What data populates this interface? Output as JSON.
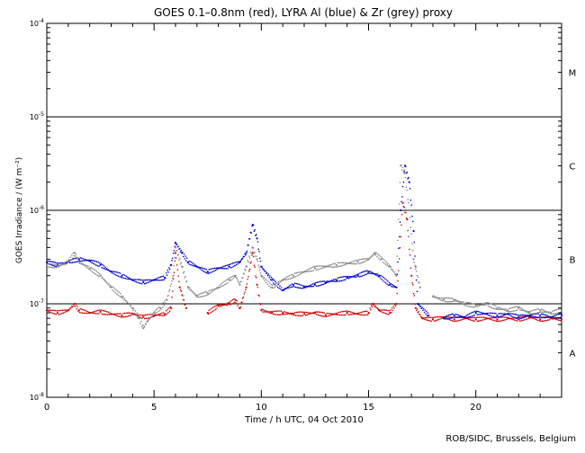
{
  "chart_data": {
    "type": "scatter",
    "title": "GOES 0.1–0.8nm (red), LYRA Al (blue) & Zr (grey) proxy",
    "xlabel": "Time / h UTC, 04 Oct 2010",
    "ylabel": "GOES Irradiance / (W m⁻²)",
    "x_ticks": [
      "0",
      "5",
      "10",
      "15",
      "20"
    ],
    "y_ticks": [
      {
        "base": "10",
        "exp": "-8",
        "value": 1e-08
      },
      {
        "base": "10",
        "exp": "-7",
        "value": 1e-07
      },
      {
        "base": "10",
        "exp": "-6",
        "value": 1e-06
      },
      {
        "base": "10",
        "exp": "-5",
        "value": 1e-05
      },
      {
        "base": "10",
        "exp": "-4",
        "value": 0.0001
      }
    ],
    "xlim": [
      0,
      24
    ],
    "ylim": [
      1e-08,
      0.0001
    ],
    "y_scale": "log",
    "class_lines": [
      1e-07,
      1e-06,
      1e-05
    ],
    "class_labels": [
      {
        "label": "A",
        "value": 3e-08
      },
      {
        "label": "B",
        "value": 3e-07
      },
      {
        "label": "C",
        "value": 3e-06
      },
      {
        "label": "M",
        "value": 3e-05
      }
    ],
    "series": [
      {
        "color": "#d00000",
        "points": [
          [
            0,
            8.5e-08
          ],
          [
            0.5,
            8e-08
          ],
          [
            1,
            8.5e-08
          ],
          [
            1.3,
            1e-07
          ],
          [
            1.5,
            8.5e-08
          ],
          [
            2,
            8e-08
          ],
          [
            2.5,
            8.2e-08
          ],
          [
            3,
            7.8e-08
          ],
          [
            3.5,
            7.5e-08
          ],
          [
            4,
            7.8e-08
          ],
          [
            4.5,
            7.2e-08
          ],
          [
            5,
            7.5e-08
          ],
          [
            5.5,
            7.8e-08
          ],
          [
            5.8,
            9e-08
          ],
          [
            6.0,
            3.5e-07
          ],
          [
            6.2,
            1.5e-07
          ],
          [
            6.5,
            9e-08
          ],
          [
            7.5,
            8e-08
          ],
          [
            8,
            9.5e-08
          ],
          [
            8.5,
            1e-07
          ],
          [
            8.8,
            1.1e-07
          ],
          [
            9,
            9e-08
          ],
          [
            9.3,
            1.5e-07
          ],
          [
            9.6,
            3.5e-07
          ],
          [
            9.8,
            1.6e-07
          ],
          [
            10,
            8.5e-08
          ],
          [
            10.5,
            8e-08
          ],
          [
            11,
            8e-08
          ],
          [
            11.5,
            7.8e-08
          ],
          [
            12,
            7.8e-08
          ],
          [
            12.5,
            8e-08
          ],
          [
            13,
            7.6e-08
          ],
          [
            13.5,
            7.8e-08
          ],
          [
            14,
            8e-08
          ],
          [
            14.5,
            7.8e-08
          ],
          [
            15,
            8e-08
          ],
          [
            15.2,
            1e-07
          ],
          [
            15.5,
            8.5e-08
          ],
          [
            16,
            8e-08
          ],
          [
            16.3,
            1e-07
          ],
          [
            16.6,
            1.2e-06
          ],
          [
            16.8,
            8e-07
          ],
          [
            17,
            2e-07
          ],
          [
            17.2,
            9e-08
          ],
          [
            17.5,
            7e-08
          ],
          [
            18,
            6.8e-08
          ],
          [
            18.5,
            7.2e-08
          ],
          [
            19,
            6.8e-08
          ],
          [
            19.5,
            7e-08
          ],
          [
            20,
            6.8e-08
          ],
          [
            20.5,
            7e-08
          ],
          [
            21,
            6.8e-08
          ],
          [
            21.5,
            7e-08
          ],
          [
            22,
            6.8e-08
          ],
          [
            22.5,
            7.2e-08
          ],
          [
            23,
            6.8e-08
          ],
          [
            23.5,
            7e-08
          ],
          [
            24,
            6.8e-08
          ]
        ]
      },
      {
        "color": "#0000cc",
        "points": [
          [
            0,
            2.8e-07
          ],
          [
            0.5,
            2.6e-07
          ],
          [
            1,
            2.8e-07
          ],
          [
            1.5,
            3e-07
          ],
          [
            2,
            2.9e-07
          ],
          [
            2.5,
            2.6e-07
          ],
          [
            3,
            2.2e-07
          ],
          [
            3.5,
            2e-07
          ],
          [
            4,
            1.8e-07
          ],
          [
            4.5,
            1.7e-07
          ],
          [
            5,
            1.8e-07
          ],
          [
            5.5,
            1.9e-07
          ],
          [
            5.8,
            2.6e-07
          ],
          [
            6.0,
            4.5e-07
          ],
          [
            6.3,
            3.5e-07
          ],
          [
            6.6,
            2.8e-07
          ],
          [
            7,
            2.5e-07
          ],
          [
            7.5,
            2.2e-07
          ],
          [
            8,
            2.4e-07
          ],
          [
            8.5,
            2.5e-07
          ],
          [
            9,
            2.8e-07
          ],
          [
            9.3,
            3.5e-07
          ],
          [
            9.6,
            7e-07
          ],
          [
            9.8,
            5e-07
          ],
          [
            10,
            2.5e-07
          ],
          [
            10.5,
            1.8e-07
          ],
          [
            11,
            1.4e-07
          ],
          [
            11.5,
            1.6e-07
          ],
          [
            12,
            1.5e-07
          ],
          [
            12.5,
            1.6e-07
          ],
          [
            13,
            1.7e-07
          ],
          [
            13.5,
            1.8e-07
          ],
          [
            14,
            1.9e-07
          ],
          [
            14.5,
            2e-07
          ],
          [
            15,
            2.2e-07
          ],
          [
            15.5,
            2e-07
          ],
          [
            16,
            1.6e-07
          ],
          [
            16.3,
            1.5e-07
          ],
          [
            16.5,
            1e-06
          ],
          [
            16.7,
            3e-06
          ],
          [
            16.9,
            2e-06
          ],
          [
            17.1,
            6e-07
          ],
          [
            17.3,
            1e-07
          ],
          [
            17.8,
            7.5e-08
          ],
          [
            18.5,
            7e-08
          ],
          [
            19,
            7.5e-08
          ],
          [
            19.5,
            7.2e-08
          ],
          [
            20,
            8e-08
          ],
          [
            20.5,
            7.8e-08
          ],
          [
            21,
            7.5e-08
          ],
          [
            21.5,
            7.8e-08
          ],
          [
            22,
            7.2e-08
          ],
          [
            22.5,
            7.5e-08
          ],
          [
            23,
            7.5e-08
          ],
          [
            23.5,
            7.2e-08
          ],
          [
            24,
            7.5e-08
          ]
        ]
      },
      {
        "color": "#888888",
        "points": [
          [
            0,
            2.6e-07
          ],
          [
            0.5,
            2.5e-07
          ],
          [
            1,
            2.8e-07
          ],
          [
            1.3,
            3.5e-07
          ],
          [
            1.5,
            2.8e-07
          ],
          [
            2,
            2.4e-07
          ],
          [
            2.5,
            2e-07
          ],
          [
            3,
            1.5e-07
          ],
          [
            3.5,
            1.2e-07
          ],
          [
            4,
            9e-08
          ],
          [
            4.3,
            7e-08
          ],
          [
            4.5,
            5.5e-08
          ],
          [
            4.7,
            6.5e-08
          ],
          [
            5,
            8e-08
          ],
          [
            5.3,
            9e-08
          ],
          [
            5.6,
            1.1e-07
          ],
          [
            5.9,
            2e-07
          ],
          [
            6.0,
            4e-07
          ],
          [
            6.3,
            2.5e-07
          ],
          [
            6.6,
            1.5e-07
          ],
          [
            7,
            1.2e-07
          ],
          [
            7.5,
            1.3e-07
          ],
          [
            8,
            1.5e-07
          ],
          [
            8.5,
            1.8e-07
          ],
          [
            8.8,
            2e-07
          ],
          [
            9,
            1.6e-07
          ],
          [
            9.3,
            2.5e-07
          ],
          [
            9.6,
            4e-07
          ],
          [
            9.8,
            3e-07
          ],
          [
            10,
            2e-07
          ],
          [
            10.5,
            1.5e-07
          ],
          [
            11,
            1.8e-07
          ],
          [
            11.5,
            2e-07
          ],
          [
            12,
            2.2e-07
          ],
          [
            12.5,
            2.4e-07
          ],
          [
            13,
            2.5e-07
          ],
          [
            13.5,
            2.6e-07
          ],
          [
            14,
            2.7e-07
          ],
          [
            14.5,
            2.8e-07
          ],
          [
            15,
            3e-07
          ],
          [
            15.3,
            3.5e-07
          ],
          [
            15.6,
            3e-07
          ],
          [
            16,
            2.5e-07
          ],
          [
            16.3,
            2e-07
          ],
          [
            16.5,
            3e-06
          ],
          [
            16.7,
            2.5e-06
          ],
          [
            16.9,
            1e-06
          ],
          [
            17.1,
            3e-07
          ],
          [
            17.4,
            1.5e-07
          ],
          [
            18,
            1.2e-07
          ],
          [
            18.5,
            1.1e-07
          ],
          [
            19,
            1.1e-07
          ],
          [
            19.5,
            1e-07
          ],
          [
            20,
            9.5e-08
          ],
          [
            20.5,
            1e-07
          ],
          [
            21,
            9e-08
          ],
          [
            21.5,
            8.5e-08
          ],
          [
            22,
            9e-08
          ],
          [
            22.5,
            8e-08
          ],
          [
            23,
            8.5e-08
          ],
          [
            23.5,
            8e-08
          ],
          [
            24,
            8.5e-08
          ]
        ]
      }
    ]
  },
  "footer": {
    "credit": "ROB/SIDC, Brussels, Belgium"
  }
}
